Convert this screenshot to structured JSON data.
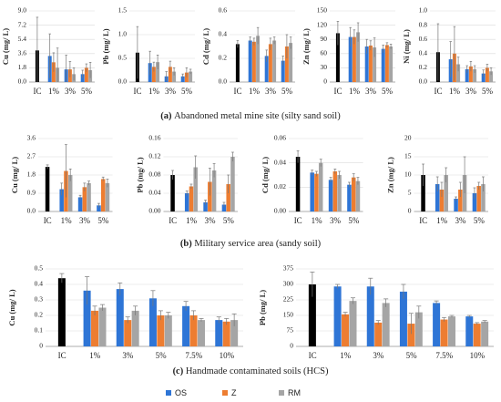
{
  "chart_data": [
    {
      "type": "bar",
      "ylabel": "Cu (mg/ L)",
      "categories": [
        "IC",
        "1%",
        "3%",
        "5%"
      ],
      "ylim": [
        0,
        9
      ],
      "yticks": [
        {
          "value": 0,
          "label": "0.0"
        },
        1.8,
        3.6,
        5.4,
        7.2,
        {
          "value": 9,
          "label": "9.0"
        }
      ],
      "grid": true,
      "control": {
        "value": 4.0,
        "error": 4.2,
        "color": "#000000"
      },
      "series": [
        {
          "name": "OS",
          "color": "#2e75d6",
          "values": [
            null,
            3.3,
            1.6,
            1.0
          ],
          "errors": [
            null,
            2.8,
            1.8,
            0.5
          ]
        },
        {
          "name": "Z",
          "color": "#ed7d31",
          "values": [
            null,
            2.5,
            1.6,
            1.8
          ],
          "errors": [
            null,
            1.2,
            1.0,
            0.5
          ]
        },
        {
          "name": "RM",
          "color": "#a5a5a5",
          "values": [
            null,
            1.8,
            1.0,
            1.5
          ],
          "errors": [
            null,
            2.5,
            0.8,
            1.0
          ]
        }
      ]
    },
    {
      "type": "bar",
      "ylabel": "Pb (mg/ L)",
      "categories": [
        "IC",
        "1%",
        "3%",
        "5%"
      ],
      "ylim": [
        0,
        1.5
      ],
      "yticks": [
        {
          "value": 0,
          "label": "0.0"
        },
        0.5,
        {
          "value": 1,
          "label": "1.0"
        },
        1.5
      ],
      "grid": true,
      "control": {
        "value": 0.62,
        "error": 0.55,
        "color": "#000000"
      },
      "series": [
        {
          "name": "OS",
          "color": "#2e75d6",
          "values": [
            null,
            0.4,
            0.12,
            0.12
          ],
          "errors": [
            null,
            0.25,
            0.1,
            0.05
          ]
        },
        {
          "name": "Z",
          "color": "#ed7d31",
          "values": [
            null,
            0.32,
            0.32,
            0.2
          ],
          "errors": [
            null,
            0.1,
            0.12,
            0.1
          ]
        },
        {
          "name": "RM",
          "color": "#a5a5a5",
          "values": [
            null,
            0.42,
            0.22,
            0.22
          ],
          "errors": [
            null,
            0.15,
            0.08,
            0.05
          ]
        }
      ]
    },
    {
      "type": "bar",
      "ylabel": "Cd (mg/ L)",
      "categories": [
        "IC",
        "1%",
        "3%",
        "5%"
      ],
      "ylim": [
        0,
        0.6
      ],
      "yticks": [
        {
          "value": 0,
          "label": "0.0"
        },
        0.2,
        0.4,
        0.6
      ],
      "grid": true,
      "control": {
        "value": 0.32,
        "error": 0.03,
        "color": "#000000"
      },
      "series": [
        {
          "name": "OS",
          "color": "#2e75d6",
          "values": [
            null,
            0.35,
            0.22,
            0.18
          ],
          "errors": [
            null,
            0.03,
            0.05,
            0.04
          ]
        },
        {
          "name": "Z",
          "color": "#ed7d31",
          "values": [
            null,
            0.34,
            0.32,
            0.3
          ],
          "errors": [
            null,
            0.03,
            0.05,
            0.1
          ]
        },
        {
          "name": "RM",
          "color": "#a5a5a5",
          "values": [
            null,
            0.39,
            0.35,
            0.33
          ],
          "errors": [
            null,
            0.07,
            0.03,
            0.05
          ]
        }
      ]
    },
    {
      "type": "bar",
      "ylabel": "Zn (mg/ L)",
      "categories": [
        "IC",
        "1%",
        "3%",
        "5%"
      ],
      "ylim": [
        0,
        150
      ],
      "yticks": [
        0,
        30,
        60,
        90,
        120,
        150
      ],
      "grid": true,
      "control": {
        "value": 103,
        "error": 25,
        "color": "#000000"
      },
      "series": [
        {
          "name": "OS",
          "color": "#2e75d6",
          "values": [
            null,
            95,
            75,
            70
          ],
          "errors": [
            null,
            20,
            15,
            8
          ]
        },
        {
          "name": "Z",
          "color": "#ed7d31",
          "values": [
            null,
            95,
            77,
            78
          ],
          "errors": [
            null,
            15,
            10,
            5
          ]
        },
        {
          "name": "RM",
          "color": "#a5a5a5",
          "values": [
            null,
            105,
            73,
            75
          ],
          "errors": [
            null,
            20,
            20,
            5
          ]
        }
      ]
    },
    {
      "type": "bar",
      "ylabel": "Ni (mg/ L)",
      "categories": [
        "IC",
        "1%",
        "3%",
        "5%"
      ],
      "ylim": [
        0,
        1
      ],
      "yticks": [
        {
          "value": 0,
          "label": "0.0"
        },
        0.2,
        0.4,
        0.6,
        0.8,
        {
          "value": 1,
          "label": "1.0"
        }
      ],
      "grid": true,
      "control": {
        "value": 0.42,
        "error": 0.4,
        "color": "#000000"
      },
      "series": [
        {
          "name": "OS",
          "color": "#2e75d6",
          "values": [
            null,
            0.32,
            0.18,
            0.12
          ],
          "errors": [
            null,
            0.25,
            0.05,
            0.05
          ]
        },
        {
          "name": "Z",
          "color": "#ed7d31",
          "values": [
            null,
            0.4,
            0.22,
            0.2
          ],
          "errors": [
            null,
            0.38,
            0.07,
            0.05
          ]
        },
        {
          "name": "RM",
          "color": "#a5a5a5",
          "values": [
            null,
            0.25,
            0.18,
            0.15
          ],
          "errors": [
            null,
            0.1,
            0.05,
            0.05
          ]
        }
      ]
    },
    {
      "type": "bar",
      "ylabel": "Cu (mg/ L)",
      "categories": [
        "IC",
        "1%",
        "3%",
        "5%"
      ],
      "ylim": [
        0,
        3.6
      ],
      "yticks": [
        {
          "value": 0,
          "label": "0.0"
        },
        0.9,
        1.8,
        2.7,
        3.6
      ],
      "grid": true,
      "control": {
        "value": 2.2,
        "error": 0.1,
        "color": "#000000"
      },
      "series": [
        {
          "name": "OS",
          "color": "#2e75d6",
          "values": [
            null,
            1.1,
            0.7,
            0.3
          ],
          "errors": [
            null,
            0.3,
            0.1,
            0.1
          ]
        },
        {
          "name": "Z",
          "color": "#ed7d31",
          "values": [
            null,
            2.0,
            1.2,
            1.6
          ],
          "errors": [
            null,
            1.3,
            0.2,
            0.1
          ]
        },
        {
          "name": "RM",
          "color": "#a5a5a5",
          "values": [
            null,
            1.8,
            1.4,
            1.4
          ],
          "errors": [
            null,
            0.3,
            0.1,
            0.2
          ]
        }
      ]
    },
    {
      "type": "bar",
      "ylabel": "Pb (mg/ L)",
      "categories": [
        "IC",
        "1%",
        "3%",
        "5%"
      ],
      "ylim": [
        0,
        0.16
      ],
      "yticks": [
        {
          "value": 0,
          "label": "0.00"
        },
        {
          "value": 0.04,
          "label": "0.04"
        },
        {
          "value": 0.08,
          "label": "0.08"
        },
        {
          "value": 0.12,
          "label": "0.12"
        },
        {
          "value": 0.16,
          "label": "0.16"
        }
      ],
      "grid": true,
      "control": {
        "value": 0.08,
        "error": 0.01,
        "color": "#000000"
      },
      "series": [
        {
          "name": "OS",
          "color": "#2e75d6",
          "values": [
            null,
            0.04,
            0.02,
            0.015
          ],
          "errors": [
            null,
            0.005,
            0.005,
            0.005
          ]
        },
        {
          "name": "Z",
          "color": "#ed7d31",
          "values": [
            null,
            0.055,
            0.065,
            0.06
          ],
          "errors": [
            null,
            0.005,
            0.03,
            0.02
          ]
        },
        {
          "name": "RM",
          "color": "#a5a5a5",
          "values": [
            null,
            0.097,
            0.09,
            0.12
          ],
          "errors": [
            null,
            0.025,
            0.015,
            0.01
          ]
        }
      ]
    },
    {
      "type": "bar",
      "ylabel": "Cd (mg/ L)",
      "categories": [
        "IC",
        "1%",
        "3%",
        "5%"
      ],
      "ylim": [
        0,
        0.06
      ],
      "yticks": [
        {
          "value": 0,
          "label": "0.00"
        },
        0.02,
        0.04,
        0.06
      ],
      "grid": true,
      "control": {
        "value": 0.045,
        "error": 0.005,
        "color": "#000000"
      },
      "series": [
        {
          "name": "OS",
          "color": "#2e75d6",
          "values": [
            null,
            0.032,
            0.026,
            0.022
          ],
          "errors": [
            null,
            0.002,
            0.002,
            0.002
          ]
        },
        {
          "name": "Z",
          "color": "#ed7d31",
          "values": [
            null,
            0.031,
            0.033,
            0.028
          ],
          "errors": [
            null,
            0.002,
            0.002,
            0.003
          ]
        },
        {
          "name": "RM",
          "color": "#a5a5a5",
          "values": [
            null,
            0.04,
            0.03,
            0.025
          ],
          "errors": [
            null,
            0.003,
            0.003,
            0.003
          ]
        }
      ]
    },
    {
      "type": "bar",
      "ylabel": "Zn (mg/ L)",
      "categories": [
        "IC",
        "1%",
        "3%",
        "5%"
      ],
      "ylim": [
        0,
        20
      ],
      "yticks": [
        0,
        5,
        10,
        15,
        20
      ],
      "grid": true,
      "control": {
        "value": 10,
        "error": 3,
        "color": "#000000"
      },
      "series": [
        {
          "name": "OS",
          "color": "#2e75d6",
          "values": [
            null,
            7.5,
            3.5,
            5
          ],
          "errors": [
            null,
            2,
            0.5,
            1.5
          ]
        },
        {
          "name": "Z",
          "color": "#ed7d31",
          "values": [
            null,
            6,
            6,
            7
          ],
          "errors": [
            null,
            2,
            2,
            1
          ]
        },
        {
          "name": "RM",
          "color": "#a5a5a5",
          "values": [
            null,
            10,
            10,
            7.5
          ],
          "errors": [
            null,
            2,
            5,
            2
          ]
        }
      ]
    },
    {
      "type": "bar",
      "ylabel": "Cu (mg/ L)",
      "categories": [
        "IC",
        "1%",
        "3%",
        "5%",
        "7.5%",
        "10%"
      ],
      "ylim": [
        0,
        0.5
      ],
      "yticks": [
        0,
        0.1,
        0.2,
        0.3,
        0.4,
        0.5
      ],
      "grid": true,
      "control": {
        "value": 0.44,
        "error": 0.03,
        "color": "#000000"
      },
      "series": [
        {
          "name": "OS",
          "color": "#2e75d6",
          "values": [
            null,
            0.36,
            0.37,
            0.31,
            0.26,
            0.17
          ],
          "errors": [
            null,
            0.09,
            0.04,
            0.05,
            0.03,
            0.02
          ]
        },
        {
          "name": "Z",
          "color": "#ed7d31",
          "values": [
            null,
            0.23,
            0.17,
            0.2,
            0.2,
            0.16
          ],
          "errors": [
            null,
            0.03,
            0.02,
            0.03,
            0.03,
            0.02
          ]
        },
        {
          "name": "RM",
          "color": "#a5a5a5",
          "values": [
            null,
            0.25,
            0.23,
            0.2,
            0.17,
            0.17
          ],
          "errors": [
            null,
            0.02,
            0.03,
            0.02,
            0.01,
            0.04
          ]
        }
      ]
    },
    {
      "type": "bar",
      "ylabel": "Pb (mg/ L)",
      "categories": [
        "IC",
        "1%",
        "3%",
        "5%",
        "7.5%",
        "10%"
      ],
      "ylim": [
        0,
        375
      ],
      "yticks": [
        0,
        75,
        150,
        225,
        300,
        375
      ],
      "grid": true,
      "control": {
        "value": 300,
        "error": 60,
        "color": "#000000"
      },
      "series": [
        {
          "name": "OS",
          "color": "#2e75d6",
          "values": [
            null,
            290,
            290,
            265,
            210,
            145
          ],
          "errors": [
            null,
            10,
            40,
            35,
            10,
            5
          ]
        },
        {
          "name": "Z",
          "color": "#ed7d31",
          "values": [
            null,
            155,
            115,
            110,
            130,
            110
          ],
          "errors": [
            null,
            10,
            10,
            50,
            10,
            5
          ]
        },
        {
          "name": "RM",
          "color": "#a5a5a5",
          "values": [
            null,
            220,
            210,
            165,
            145,
            120
          ],
          "errors": [
            null,
            15,
            20,
            30,
            5,
            5
          ]
        }
      ]
    }
  ],
  "captions": [
    {
      "label": "(a)",
      "text": "Abandoned metal mine site (silty sand soil)"
    },
    {
      "label": "(b)",
      "text": "Military service area (sandy soil)"
    },
    {
      "label": "(c)",
      "text": "Handmade contaminated soils (HCS)"
    }
  ]
}
